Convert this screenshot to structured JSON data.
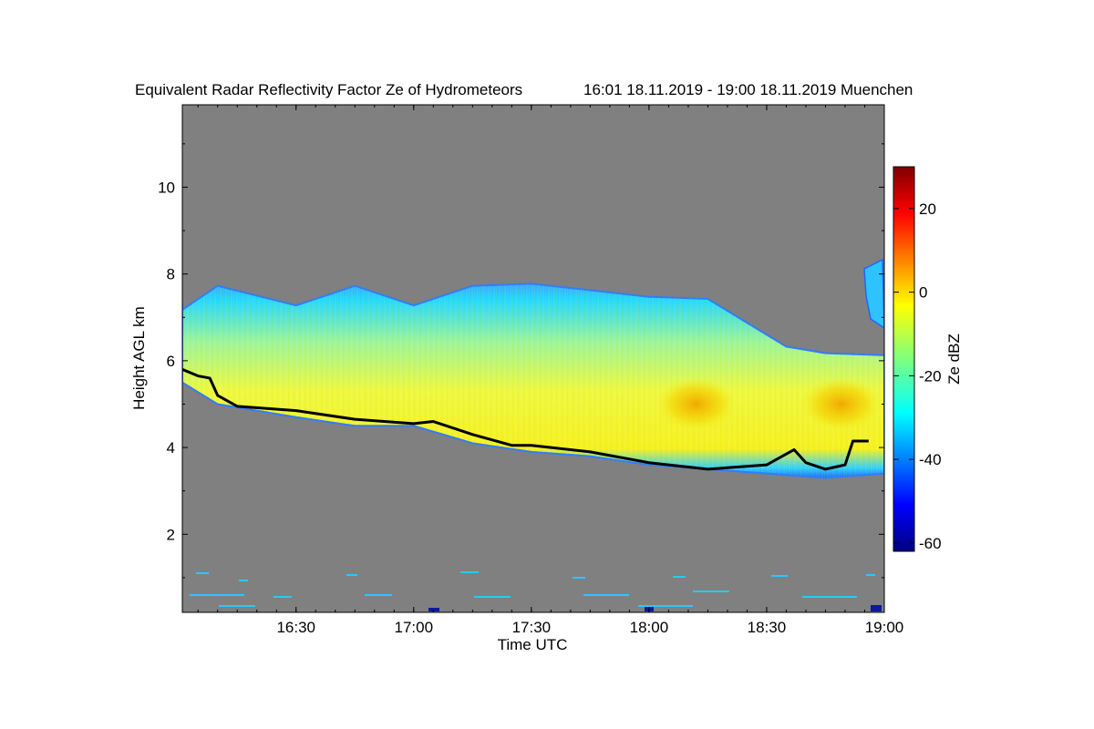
{
  "chart_data": {
    "type": "heatmap",
    "title": "Equivalent Radar Reflectivity Factor Ze of Hydrometeors",
    "time_range_text": "16:01 18.11.2019 - 19:00 18.11.2019 Muenchen",
    "xlabel": "Time UTC",
    "ylabel": "Height AGL km",
    "xlim": [
      "16:01",
      "19:00"
    ],
    "ylim": [
      0.2,
      11.9
    ],
    "x_ticks": [
      "16:30",
      "17:00",
      "17:30",
      "18:00",
      "18:30",
      "19:00"
    ],
    "y_ticks": [
      2,
      4,
      6,
      8,
      10
    ],
    "background_color": "#808080",
    "colorbar": {
      "label": "Ze dBZ",
      "range": [
        -62,
        30
      ],
      "ticks": [
        -60,
        -40,
        -20,
        0,
        20
      ],
      "colormap": "jet"
    },
    "cloud_top_km": [
      {
        "time": "16:01",
        "value": 7.3
      },
      {
        "time": "16:10",
        "value": 7.6
      },
      {
        "time": "16:30",
        "value": 7.4
      },
      {
        "time": "16:45",
        "value": 7.6
      },
      {
        "time": "17:00",
        "value": 7.4
      },
      {
        "time": "17:15",
        "value": 7.6
      },
      {
        "time": "17:30",
        "value": 7.9
      },
      {
        "time": "17:45",
        "value": 7.5
      },
      {
        "time": "18:00",
        "value": 7.6
      },
      {
        "time": "18:15",
        "value": 7.3
      },
      {
        "time": "18:25",
        "value": 7.0
      },
      {
        "time": "18:35",
        "value": 6.2
      },
      {
        "time": "18:45",
        "value": 6.3
      },
      {
        "time": "19:00",
        "value": 6.0
      }
    ],
    "cloud_base_km": [
      {
        "time": "16:01",
        "value": 5.5
      },
      {
        "time": "16:10",
        "value": 5.0
      },
      {
        "time": "16:30",
        "value": 4.7
      },
      {
        "time": "16:45",
        "value": 4.5
      },
      {
        "time": "17:00",
        "value": 4.5
      },
      {
        "time": "17:15",
        "value": 4.1
      },
      {
        "time": "17:30",
        "value": 3.9
      },
      {
        "time": "17:45",
        "value": 3.8
      },
      {
        "time": "18:00",
        "value": 3.6
      },
      {
        "time": "18:15",
        "value": 3.5
      },
      {
        "time": "18:30",
        "value": 3.4
      },
      {
        "time": "18:45",
        "value": 3.3
      },
      {
        "time": "19:00",
        "value": 3.4
      }
    ],
    "melting_layer_line_km": [
      {
        "time": "16:01",
        "value": 5.8
      },
      {
        "time": "16:05",
        "value": 5.65
      },
      {
        "time": "16:08",
        "value": 5.6
      },
      {
        "time": "16:10",
        "value": 5.2
      },
      {
        "time": "16:15",
        "value": 4.95
      },
      {
        "time": "16:30",
        "value": 4.85
      },
      {
        "time": "16:45",
        "value": 4.65
      },
      {
        "time": "17:00",
        "value": 4.55
      },
      {
        "time": "17:05",
        "value": 4.6
      },
      {
        "time": "17:15",
        "value": 4.3
      },
      {
        "time": "17:25",
        "value": 4.05
      },
      {
        "time": "17:30",
        "value": 4.05
      },
      {
        "time": "17:45",
        "value": 3.9
      },
      {
        "time": "18:00",
        "value": 3.65
      },
      {
        "time": "18:15",
        "value": 3.5
      },
      {
        "time": "18:30",
        "value": 3.6
      },
      {
        "time": "18:37",
        "value": 3.95
      },
      {
        "time": "18:40",
        "value": 3.65
      },
      {
        "time": "18:45",
        "value": 3.5
      },
      {
        "time": "18:50",
        "value": 3.6
      },
      {
        "time": "18:52",
        "value": 4.15
      },
      {
        "time": "18:56",
        "value": 4.15
      }
    ],
    "high_reflectivity_cores": [
      {
        "time": "18:12",
        "height": 5.0,
        "ze": 5
      },
      {
        "time": "18:49",
        "height": 5.0,
        "ze": 5
      }
    ],
    "typical_ze_core_dbz": -5,
    "typical_ze_edge_dbz": -30
  }
}
